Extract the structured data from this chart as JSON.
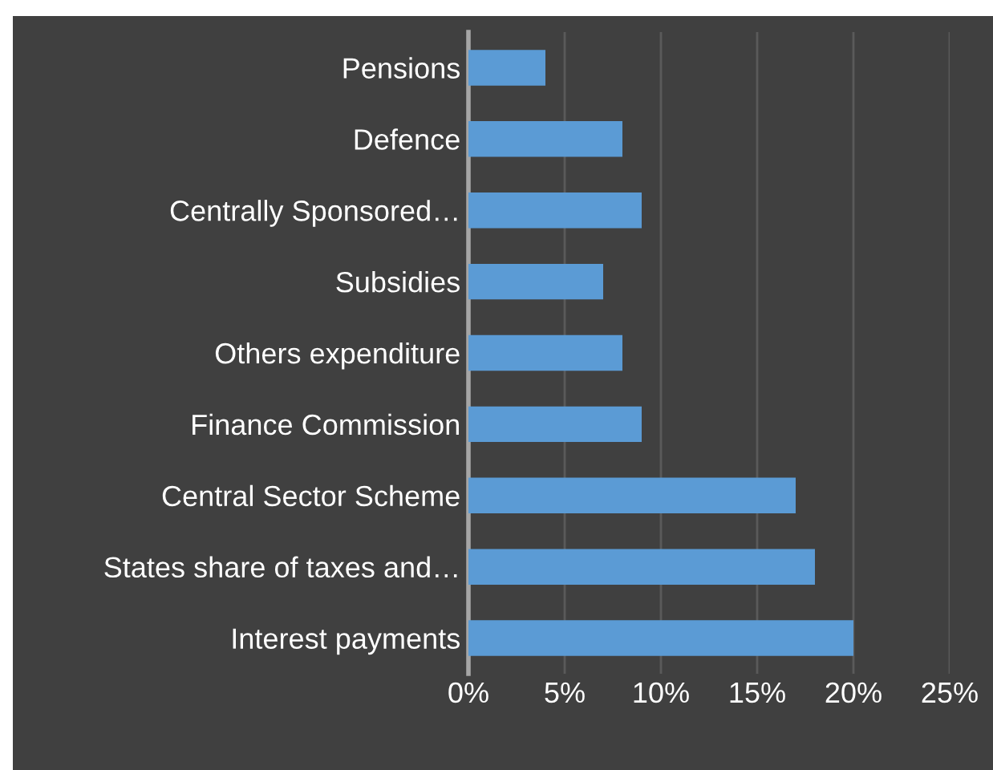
{
  "chart_data": {
    "type": "bar",
    "orientation": "horizontal",
    "categories": [
      "Pensions",
      "Defence",
      "Centrally Sponsored…",
      "Subsidies",
      "Others expenditure",
      "Finance Commission",
      "Central Sector Scheme",
      "States share of taxes and…",
      "Interest payments"
    ],
    "values": [
      4,
      8,
      9,
      7,
      8,
      9,
      17,
      18,
      20
    ],
    "color": "#5b9bd5",
    "xlim": [
      0,
      25
    ],
    "xticks": [
      {
        "value": 0,
        "label": "0%"
      },
      {
        "value": 5,
        "label": "5%"
      },
      {
        "value": 10,
        "label": "10%"
      },
      {
        "value": 15,
        "label": "15%"
      },
      {
        "value": 20,
        "label": "20%"
      },
      {
        "value": 25,
        "label": "25%"
      }
    ],
    "grid": "x"
  }
}
